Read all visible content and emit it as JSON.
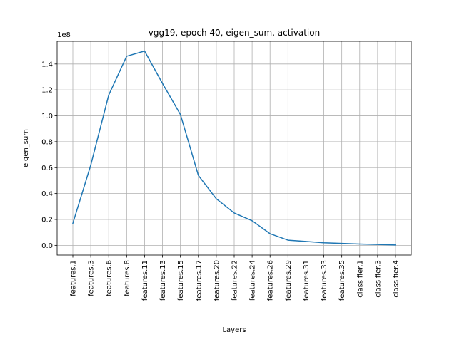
{
  "chart_data": {
    "type": "line",
    "title": "vgg19, epoch 40, eigen_sum, activation",
    "xlabel": "Layers",
    "ylabel": "eigen_sum",
    "y_offset_label": "1e8",
    "categories": [
      "features.1",
      "features.3",
      "features.6",
      "features.8",
      "features.11",
      "features.13",
      "features.15",
      "features.17",
      "features.20",
      "features.22",
      "features.24",
      "features.26",
      "features.29",
      "features.31",
      "features.33",
      "features.35",
      "classifier.1",
      "classifier.3",
      "classifier.4"
    ],
    "series": [
      {
        "values": [
          0.17,
          0.62,
          1.16,
          1.46,
          1.5,
          1.25,
          1.01,
          0.54,
          0.36,
          0.25,
          0.19,
          0.09,
          0.04,
          0.03,
          0.02,
          0.015,
          0.01,
          0.007,
          0.003
        ],
        "color": "#1f77b4"
      }
    ],
    "yticks": [
      "0.0",
      "0.2",
      "0.4",
      "0.6",
      "0.8",
      "1.0",
      "1.2",
      "1.4"
    ],
    "ylim": [
      -0.075,
      1.575
    ],
    "grid": true
  }
}
